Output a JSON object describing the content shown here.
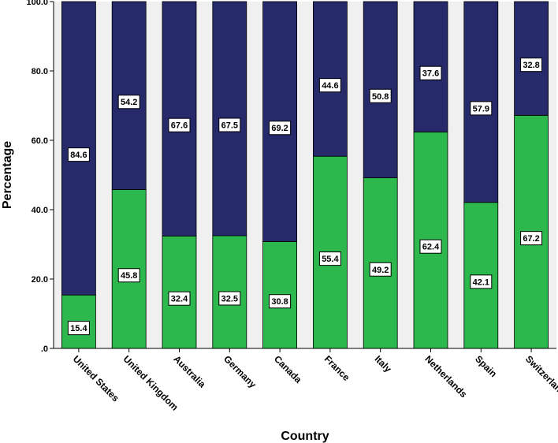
{
  "chart_data": {
    "type": "bar",
    "stacked": true,
    "title": "",
    "xlabel": "Country",
    "ylabel": "Percentage",
    "ylim": [
      0,
      100
    ],
    "yticks": [
      ".0",
      "20.0",
      "40.0",
      "60.0",
      "80.0",
      "100.0"
    ],
    "grid": false,
    "categories": [
      "United States",
      "United Kingdom",
      "Australia",
      "Germany",
      "Canada",
      "France",
      "Italy",
      "Netherlands",
      "Spain",
      "Switzerland"
    ],
    "series": [
      {
        "values": [
          15.4,
          45.8,
          32.4,
          32.5,
          30.8,
          55.4,
          49.2,
          62.4,
          42.1,
          67.2
        ],
        "color": "#2db84d"
      },
      {
        "values": [
          84.6,
          54.2,
          67.6,
          67.5,
          69.2,
          44.6,
          50.8,
          37.6,
          57.9,
          32.8
        ],
        "color": "#262a6b"
      }
    ],
    "plot_background": "#f0f0f0"
  }
}
